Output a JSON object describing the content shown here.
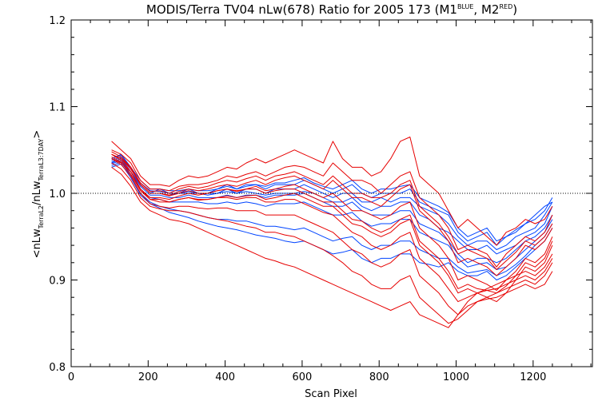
{
  "chart_data": {
    "type": "line",
    "title": {
      "prefix": "MODIS/Terra TV04 nLw(678) Ratio for 2005 173 (M1",
      "sup1": "BLUE",
      "mid": ", M2",
      "sup2": "RED",
      "suffix": ")"
    },
    "xlabel": "Scan Pixel",
    "ylabel": {
      "open": "<nLw",
      "sub1": "TerraL2",
      "mid": "/nLw",
      "sub2": "TerraL3:7DAY",
      "close": ">"
    },
    "xlim": [
      0,
      1354
    ],
    "ylim": [
      0.8,
      1.2
    ],
    "x_ticks": [
      0,
      200,
      400,
      600,
      800,
      1000,
      1200
    ],
    "x_tick_labels": [
      "0",
      "200",
      "400",
      "600",
      "800",
      "1000",
      "1200"
    ],
    "y_ticks": [
      0.8,
      0.9,
      1.0,
      1.1,
      1.2
    ],
    "y_tick_labels": [
      "0.8",
      "0.9",
      "1.0",
      "1.1",
      "1.2"
    ],
    "reference_line": 1.0,
    "colors": {
      "M1": "#0044ff",
      "M2": "#e60000",
      "axis": "#000000"
    },
    "x": [
      105,
      130,
      155,
      180,
      205,
      230,
      255,
      280,
      305,
      330,
      355,
      380,
      405,
      430,
      455,
      480,
      505,
      530,
      555,
      580,
      605,
      630,
      655,
      680,
      705,
      730,
      755,
      780,
      805,
      830,
      855,
      880,
      905,
      930,
      955,
      980,
      1005,
      1030,
      1055,
      1080,
      1105,
      1130,
      1155,
      1180,
      1205,
      1230,
      1250
    ],
    "series": [
      {
        "group": "M1",
        "values": [
          1.04,
          1.045,
          1.03,
          1.01,
          1.0,
          1.005,
          1.0,
          1.0,
          1.005,
          1.0,
          1.0,
          1.005,
          1.01,
          1.005,
          1.01,
          1.01,
          1.005,
          1.01,
          1.01,
          1.01,
          1.015,
          1.01,
          1.005,
          1.0,
          1.005,
          1.01,
          1.0,
          0.995,
          1.0,
          1.0,
          1.0,
          1.005,
          0.99,
          0.985,
          0.98,
          0.975,
          0.955,
          0.945,
          0.95,
          0.955,
          0.94,
          0.95,
          0.955,
          0.965,
          0.97,
          0.98,
          0.995
        ]
      },
      {
        "group": "M1",
        "values": [
          1.035,
          1.04,
          1.025,
          1.01,
          1.0,
          1.0,
          0.998,
          1.0,
          1.0,
          1.0,
          0.998,
          1.0,
          1.005,
          1.0,
          1.005,
          1.005,
          1.0,
          1.005,
          1.005,
          1.005,
          1.01,
          1.005,
          1.0,
          0.995,
          1.0,
          1.0,
          0.99,
          0.99,
          0.995,
          0.99,
          0.995,
          0.995,
          0.985,
          0.98,
          0.975,
          0.965,
          0.95,
          0.94,
          0.945,
          0.945,
          0.935,
          0.94,
          0.95,
          0.955,
          0.96,
          0.975,
          0.99
        ]
      },
      {
        "group": "M1",
        "values": [
          1.038,
          1.042,
          1.028,
          1.012,
          1.003,
          1.002,
          1.0,
          1.0,
          1.002,
          1.0,
          1.0,
          1.0,
          1.002,
          1.0,
          1.002,
          1.0,
          0.998,
          1.0,
          1.0,
          1.0,
          1.002,
          1.0,
          0.995,
          0.99,
          0.99,
          0.995,
          0.985,
          0.98,
          0.985,
          0.985,
          0.99,
          0.99,
          0.975,
          0.97,
          0.96,
          0.955,
          0.945,
          0.935,
          0.935,
          0.94,
          0.93,
          0.935,
          0.94,
          0.95,
          0.955,
          0.965,
          0.985
        ]
      },
      {
        "group": "M1",
        "values": [
          1.04,
          1.044,
          1.03,
          1.015,
          1.005,
          1.005,
          1.003,
          1.003,
          1.005,
          1.003,
          1.003,
          1.005,
          1.008,
          1.005,
          1.008,
          1.01,
          1.008,
          1.012,
          1.012,
          1.015,
          1.018,
          1.012,
          1.008,
          1.005,
          1.01,
          1.015,
          1.005,
          1.0,
          1.005,
          1.005,
          1.008,
          1.01,
          0.995,
          0.99,
          0.985,
          0.978,
          0.96,
          0.95,
          0.955,
          0.96,
          0.945,
          0.95,
          0.958,
          0.965,
          0.975,
          0.985,
          0.99
        ]
      },
      {
        "group": "M1",
        "values": [
          1.036,
          1.04,
          1.025,
          1.008,
          0.998,
          0.998,
          0.995,
          0.995,
          0.998,
          0.995,
          0.995,
          0.995,
          0.998,
          0.995,
          0.998,
          0.998,
          0.995,
          0.998,
          0.998,
          0.998,
          1.0,
          0.995,
          0.99,
          0.985,
          0.985,
          0.99,
          0.98,
          0.975,
          0.975,
          0.975,
          0.98,
          0.98,
          0.965,
          0.96,
          0.955,
          0.945,
          0.93,
          0.92,
          0.925,
          0.925,
          0.92,
          0.925,
          0.935,
          0.945,
          0.95,
          0.96,
          0.975
        ]
      },
      {
        "group": "M1",
        "values": [
          1.034,
          1.038,
          1.022,
          1.005,
          0.995,
          0.993,
          0.99,
          0.99,
          0.99,
          0.99,
          0.988,
          0.988,
          0.99,
          0.988,
          0.99,
          0.988,
          0.985,
          0.988,
          0.988,
          0.988,
          0.99,
          0.985,
          0.98,
          0.975,
          0.975,
          0.978,
          0.968,
          0.962,
          0.965,
          0.965,
          0.97,
          0.97,
          0.955,
          0.95,
          0.945,
          0.94,
          0.925,
          0.915,
          0.918,
          0.92,
          0.912,
          0.915,
          0.925,
          0.935,
          0.945,
          0.955,
          0.97
        ]
      },
      {
        "group": "M1",
        "values": [
          1.032,
          1.036,
          1.02,
          1.0,
          0.99,
          0.985,
          0.982,
          0.98,
          0.978,
          0.975,
          0.972,
          0.97,
          0.97,
          0.968,
          0.968,
          0.965,
          0.962,
          0.962,
          0.96,
          0.958,
          0.96,
          0.955,
          0.95,
          0.945,
          0.948,
          0.95,
          0.94,
          0.935,
          0.94,
          0.94,
          0.945,
          0.945,
          0.935,
          0.93,
          0.925,
          0.925,
          0.915,
          0.908,
          0.91,
          0.912,
          0.905,
          0.91,
          0.918,
          0.928,
          0.94,
          0.95,
          0.965
        ]
      },
      {
        "group": "M1",
        "values": [
          1.03,
          1.034,
          1.018,
          0.998,
          0.988,
          0.983,
          0.978,
          0.975,
          0.972,
          0.968,
          0.965,
          0.962,
          0.96,
          0.958,
          0.955,
          0.952,
          0.95,
          0.948,
          0.945,
          0.943,
          0.945,
          0.94,
          0.935,
          0.93,
          0.932,
          0.935,
          0.925,
          0.92,
          0.925,
          0.925,
          0.93,
          0.93,
          0.92,
          0.918,
          0.915,
          0.92,
          0.91,
          0.905,
          0.905,
          0.91,
          0.9,
          0.905,
          0.915,
          0.925,
          0.935,
          0.945,
          0.96
        ]
      },
      {
        "group": "M2",
        "values": [
          1.06,
          1.05,
          1.04,
          1.02,
          1.01,
          1.01,
          1.008,
          1.015,
          1.02,
          1.018,
          1.02,
          1.025,
          1.03,
          1.028,
          1.035,
          1.04,
          1.035,
          1.04,
          1.045,
          1.05,
          1.045,
          1.04,
          1.035,
          1.06,
          1.04,
          1.03,
          1.03,
          1.02,
          1.025,
          1.04,
          1.06,
          1.065,
          1.02,
          1.01,
          1.0,
          0.98,
          0.96,
          0.97,
          0.96,
          0.95,
          0.94,
          0.955,
          0.96,
          0.97,
          0.965,
          0.97,
          0.985
        ]
      },
      {
        "group": "M2",
        "values": [
          1.05,
          1.045,
          1.035,
          1.015,
          1.005,
          1.005,
          1.003,
          1.008,
          1.01,
          1.01,
          1.012,
          1.015,
          1.02,
          1.018,
          1.022,
          1.025,
          1.02,
          1.025,
          1.03,
          1.032,
          1.03,
          1.025,
          1.02,
          1.035,
          1.025,
          1.015,
          1.015,
          1.01,
          1.0,
          1.01,
          1.02,
          1.025,
          0.995,
          0.985,
          0.975,
          0.96,
          0.935,
          0.94,
          0.935,
          0.93,
          0.915,
          0.93,
          0.94,
          0.95,
          0.945,
          0.955,
          0.975
        ]
      },
      {
        "group": "M2",
        "values": [
          1.045,
          1.04,
          1.03,
          1.01,
          1.0,
          1.0,
          0.998,
          1.002,
          1.005,
          1.003,
          1.005,
          1.008,
          1.01,
          1.008,
          1.012,
          1.015,
          1.01,
          1.015,
          1.018,
          1.02,
          1.015,
          1.01,
          1.005,
          1.015,
          1.005,
          0.995,
          0.995,
          0.99,
          0.985,
          0.995,
          1.005,
          1.01,
          0.98,
          0.97,
          0.96,
          0.945,
          0.92,
          0.925,
          0.92,
          0.915,
          0.905,
          0.915,
          0.925,
          0.94,
          0.935,
          0.945,
          0.96
        ]
      },
      {
        "group": "M2",
        "values": [
          1.04,
          1.035,
          1.025,
          1.005,
          0.995,
          0.995,
          0.993,
          0.997,
          1.0,
          0.998,
          1.0,
          1.003,
          1.005,
          1.003,
          1.005,
          1.008,
          1.003,
          1.005,
          1.008,
          1.01,
          1.005,
          1.0,
          0.995,
          1.0,
          0.99,
          0.98,
          0.98,
          0.975,
          0.97,
          0.975,
          0.985,
          0.99,
          0.96,
          0.95,
          0.94,
          0.925,
          0.9,
          0.905,
          0.9,
          0.895,
          0.888,
          0.9,
          0.91,
          0.925,
          0.92,
          0.93,
          0.95
        ]
      },
      {
        "group": "M2",
        "values": [
          1.045,
          1.038,
          1.025,
          1.005,
          0.993,
          0.99,
          0.99,
          0.993,
          0.995,
          0.993,
          0.993,
          0.995,
          0.997,
          0.995,
          0.997,
          0.998,
          0.993,
          0.995,
          0.998,
          1.0,
          0.995,
          0.99,
          0.985,
          0.985,
          0.975,
          0.965,
          0.962,
          0.955,
          0.95,
          0.955,
          0.965,
          0.97,
          0.94,
          0.93,
          0.92,
          0.905,
          0.885,
          0.89,
          0.885,
          0.88,
          0.875,
          0.885,
          0.9,
          0.915,
          0.91,
          0.92,
          0.94
        ]
      },
      {
        "group": "M2",
        "values": [
          1.04,
          1.033,
          1.02,
          1.0,
          0.988,
          0.985,
          0.983,
          0.985,
          0.985,
          0.983,
          0.982,
          0.983,
          0.983,
          0.98,
          0.98,
          0.98,
          0.975,
          0.975,
          0.975,
          0.975,
          0.97,
          0.965,
          0.96,
          0.955,
          0.945,
          0.935,
          0.93,
          0.92,
          0.915,
          0.92,
          0.93,
          0.935,
          0.905,
          0.895,
          0.885,
          0.87,
          0.86,
          0.875,
          0.885,
          0.89,
          0.895,
          0.9,
          0.905,
          0.91,
          0.905,
          0.915,
          0.93
        ]
      },
      {
        "group": "M2",
        "values": [
          1.035,
          1.028,
          1.015,
          0.995,
          0.985,
          0.982,
          0.98,
          0.98,
          0.978,
          0.975,
          0.972,
          0.97,
          0.968,
          0.965,
          0.962,
          0.96,
          0.955,
          0.955,
          0.952,
          0.95,
          0.945,
          0.94,
          0.935,
          0.928,
          0.92,
          0.91,
          0.905,
          0.895,
          0.89,
          0.89,
          0.9,
          0.905,
          0.88,
          0.87,
          0.86,
          0.85,
          0.855,
          0.865,
          0.875,
          0.88,
          0.885,
          0.89,
          0.895,
          0.9,
          0.895,
          0.905,
          0.92
        ]
      },
      {
        "group": "M2",
        "values": [
          1.03,
          1.022,
          1.008,
          0.99,
          0.98,
          0.975,
          0.97,
          0.968,
          0.965,
          0.96,
          0.955,
          0.95,
          0.945,
          0.94,
          0.935,
          0.93,
          0.925,
          0.922,
          0.918,
          0.915,
          0.91,
          0.905,
          0.9,
          0.895,
          0.89,
          0.885,
          0.88,
          0.875,
          0.87,
          0.865,
          0.87,
          0.875,
          0.86,
          0.855,
          0.85,
          0.845,
          0.86,
          0.87,
          0.875,
          0.878,
          0.88,
          0.885,
          0.89,
          0.895,
          0.89,
          0.895,
          0.91
        ]
      },
      {
        "group": "M2",
        "values": [
          1.048,
          1.042,
          1.03,
          1.012,
          1.002,
          1.003,
          1.0,
          1.005,
          1.008,
          1.006,
          1.008,
          1.012,
          1.015,
          1.013,
          1.017,
          1.02,
          1.015,
          1.02,
          1.022,
          1.025,
          1.02,
          1.015,
          1.01,
          1.02,
          1.01,
          1.0,
          1.0,
          0.995,
          0.995,
          1.0,
          1.01,
          1.015,
          0.985,
          0.975,
          0.965,
          0.95,
          0.93,
          0.935,
          0.93,
          0.925,
          0.912,
          0.922,
          0.932,
          0.945,
          0.94,
          0.95,
          0.965
        ]
      },
      {
        "group": "M2",
        "values": [
          1.042,
          1.036,
          1.022,
          1.003,
          0.993,
          0.993,
          0.99,
          0.993,
          0.995,
          0.992,
          0.993,
          0.995,
          0.995,
          0.993,
          0.995,
          0.995,
          0.99,
          0.99,
          0.993,
          0.993,
          0.988,
          0.983,
          0.978,
          0.975,
          0.965,
          0.955,
          0.95,
          0.94,
          0.935,
          0.94,
          0.95,
          0.955,
          0.925,
          0.915,
          0.905,
          0.89,
          0.875,
          0.88,
          0.885,
          0.888,
          0.89,
          0.895,
          0.9,
          0.905,
          0.9,
          0.91,
          0.925
        ]
      },
      {
        "group": "M2",
        "values": [
          1.045,
          1.04,
          1.028,
          1.01,
          1.0,
          1.0,
          0.997,
          1.0,
          1.003,
          1.0,
          1.0,
          1.003,
          1.005,
          1.002,
          1.005,
          1.005,
          1.0,
          1.003,
          1.005,
          1.005,
          1.0,
          0.995,
          0.99,
          0.99,
          0.98,
          0.97,
          0.968,
          0.96,
          0.955,
          0.96,
          0.97,
          0.975,
          0.945,
          0.935,
          0.925,
          0.91,
          0.89,
          0.895,
          0.89,
          0.888,
          0.885,
          0.893,
          0.905,
          0.92,
          0.915,
          0.925,
          0.945
        ]
      }
    ]
  }
}
